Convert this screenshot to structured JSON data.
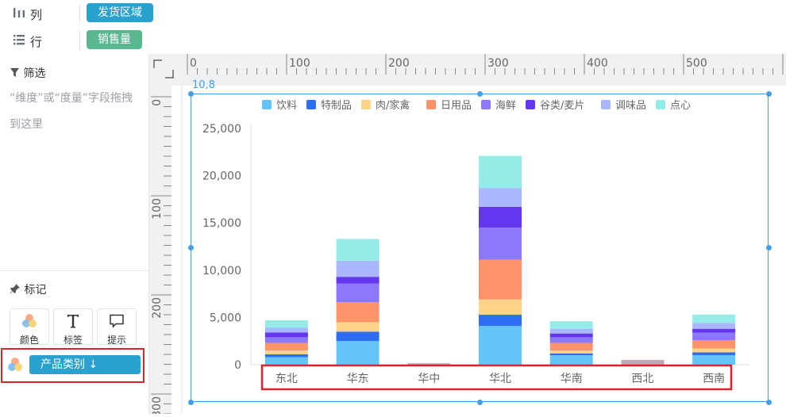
{
  "shelves": {
    "columns": {
      "label": "列",
      "field": "发货区域",
      "field_color": "#2aa2cf",
      "icon": "columns-icon"
    },
    "rows": {
      "label": "行",
      "field": "销售量",
      "field_color": "#5ab790",
      "icon": "rows-icon"
    }
  },
  "filter": {
    "title": "筛选",
    "hint": "“维度”或“度量”字段拖拽到这里",
    "icon": "filter-icon"
  },
  "marks": {
    "title": "标记",
    "icon": "pin-icon",
    "buttons": [
      {
        "label": "颜色",
        "icon": "color-icon"
      },
      {
        "label": "标签",
        "icon": "text-icon"
      },
      {
        "label": "提示",
        "icon": "tooltip-icon"
      }
    ],
    "color_field": "产品类别 ↓"
  },
  "ruler": {
    "top_ticks": [
      "0",
      "100",
      "200",
      "300",
      "400",
      "500",
      "6"
    ],
    "left_ticks": [
      "0",
      "100",
      "200",
      "300"
    ]
  },
  "selection_coord": "10,8",
  "chart_data": {
    "type": "bar",
    "stacked": true,
    "categories": [
      "东北",
      "华东",
      "华中",
      "华北",
      "华南",
      "西北",
      "西南"
    ],
    "series": [
      {
        "name": "饮料",
        "color": "#64c4f8",
        "values": [
          800,
          2500,
          0,
          4100,
          1000,
          0,
          1000
        ]
      },
      {
        "name": "特制品",
        "color": "#2e6ef4",
        "values": [
          300,
          1000,
          0,
          1200,
          200,
          0,
          300
        ]
      },
      {
        "name": "肉/家禽",
        "color": "#ffd38a",
        "values": [
          400,
          1000,
          0,
          1600,
          300,
          0,
          400
        ]
      },
      {
        "name": "日用品",
        "color": "#ff936a",
        "values": [
          800,
          2100,
          0,
          4200,
          800,
          0,
          900
        ]
      },
      {
        "name": "海鲜",
        "color": "#8c78fb",
        "values": [
          600,
          2000,
          0,
          3400,
          600,
          0,
          800
        ]
      },
      {
        "name": "谷类/麦片",
        "color": "#6436f0",
        "values": [
          500,
          700,
          0,
          2200,
          400,
          0,
          400
        ]
      },
      {
        "name": "调味品",
        "color": "#a9b8fc",
        "values": [
          500,
          1700,
          0,
          2000,
          500,
          0,
          600
        ]
      },
      {
        "name": "点心",
        "color": "#94ebe8",
        "values": [
          800,
          2300,
          0,
          3400,
          800,
          0,
          900
        ]
      }
    ],
    "small_values": {
      "华中": 150,
      "西北": 500
    },
    "ylim": [
      0,
      25000
    ],
    "yticks": [
      "0",
      "5,000",
      "10,000",
      "15,000",
      "20,000",
      "25,000"
    ],
    "legend_position": "top",
    "grid": false
  }
}
